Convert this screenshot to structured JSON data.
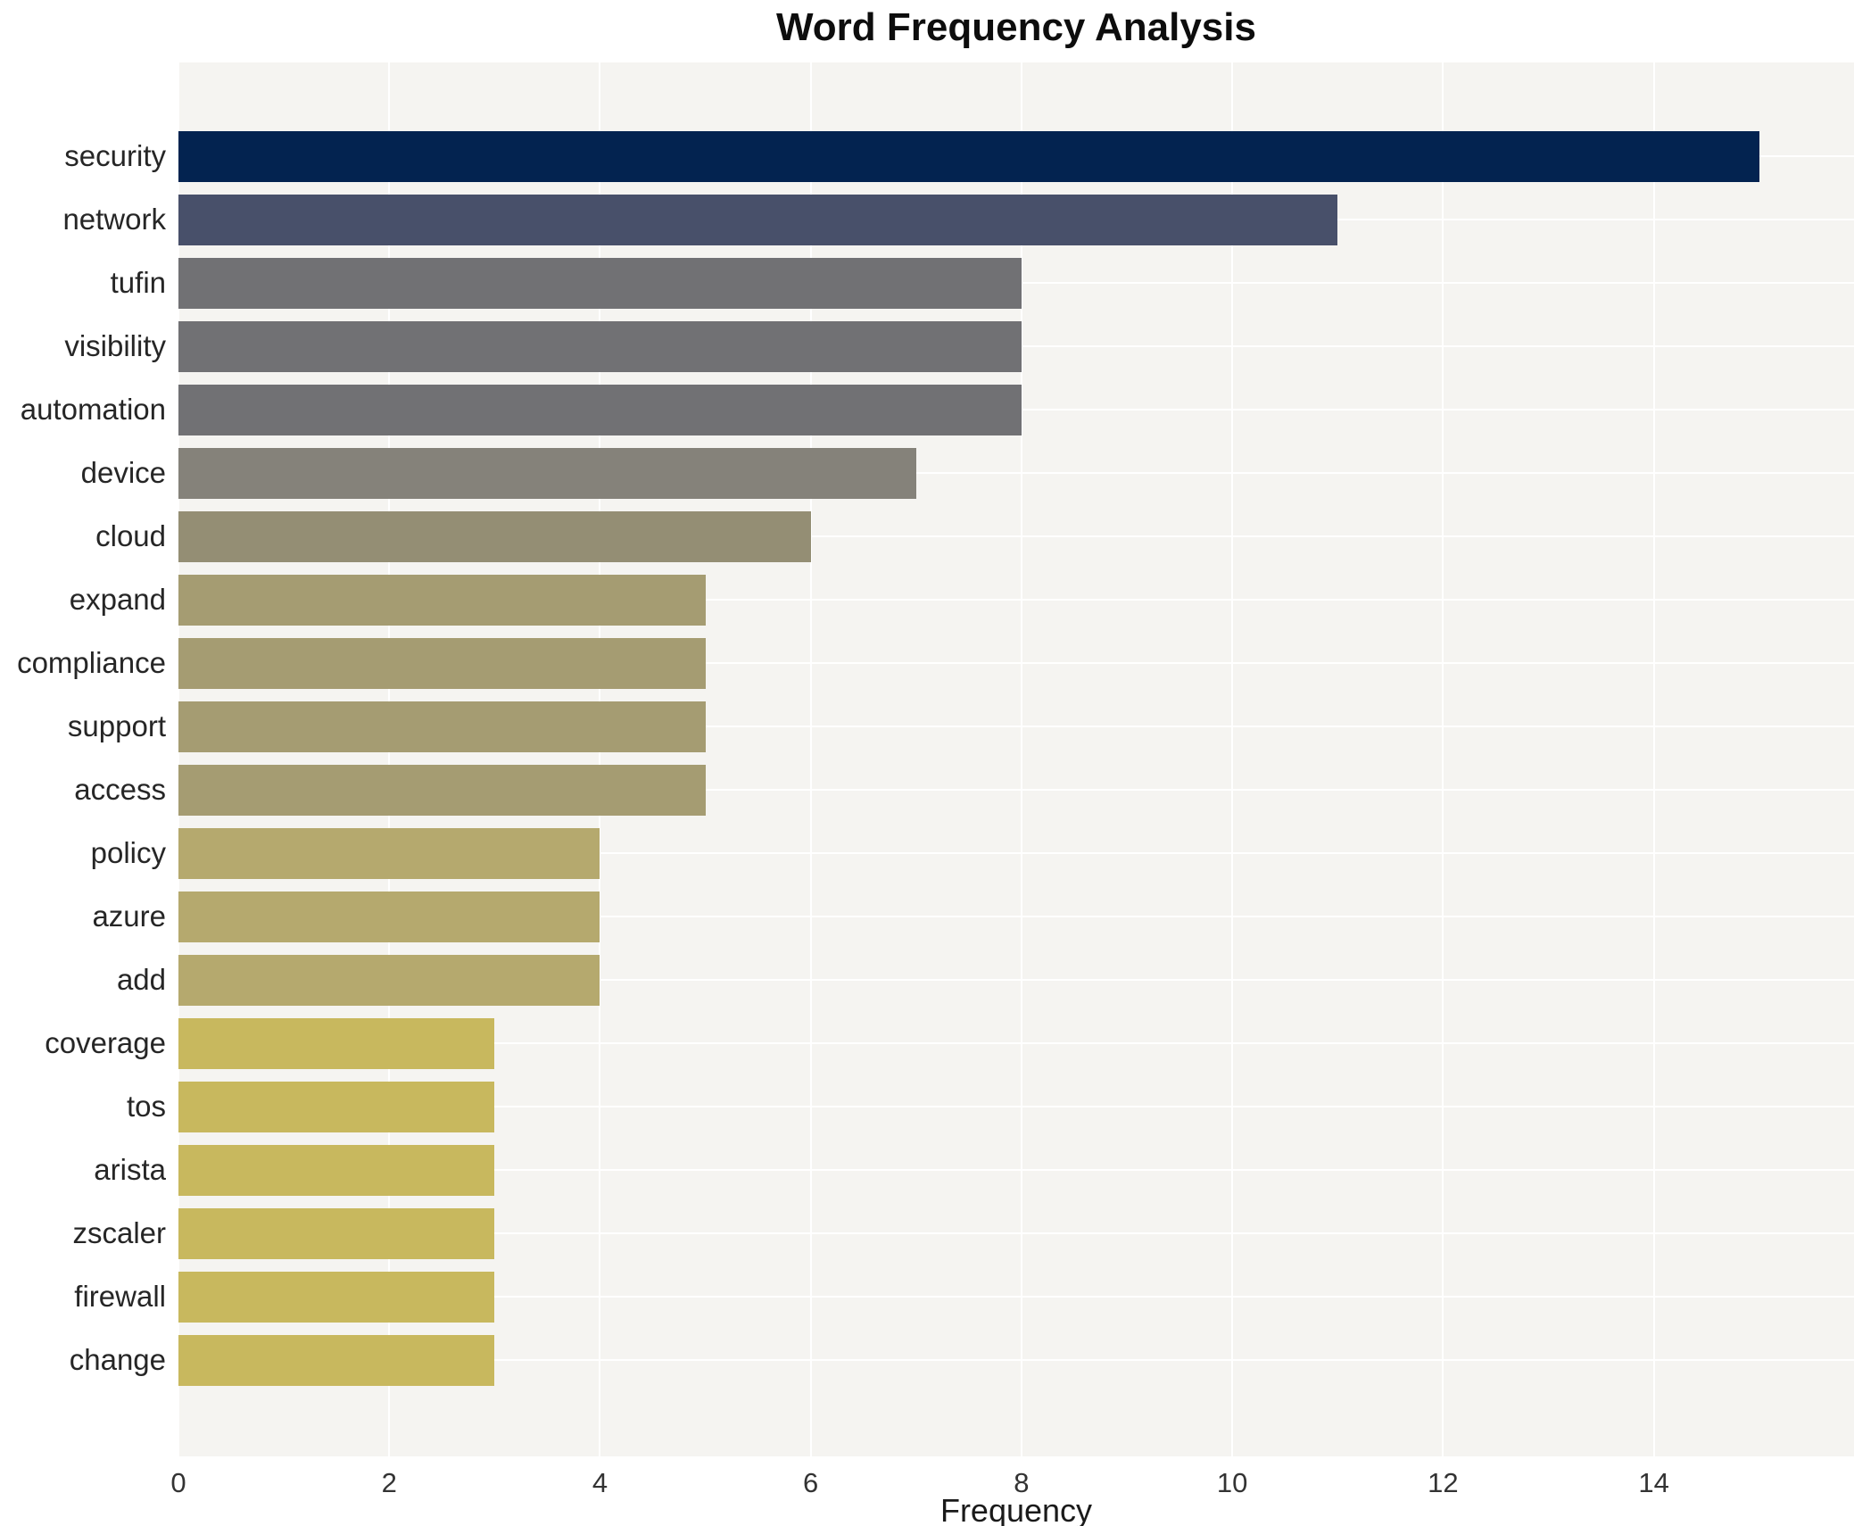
{
  "chart_data": {
    "type": "bar",
    "orientation": "horizontal",
    "title": "Word Frequency Analysis",
    "xlabel": "Frequency",
    "ylabel": "",
    "categories": [
      "security",
      "network",
      "tufin",
      "visibility",
      "automation",
      "device",
      "cloud",
      "expand",
      "compliance",
      "support",
      "access",
      "policy",
      "azure",
      "add",
      "coverage",
      "tos",
      "arista",
      "zscaler",
      "firewall",
      "change"
    ],
    "values": [
      15,
      11,
      8,
      8,
      8,
      7,
      6,
      5,
      5,
      5,
      5,
      4,
      4,
      4,
      3,
      3,
      3,
      3,
      3,
      3
    ],
    "bar_colors": [
      "#032350",
      "#48506a",
      "#717174",
      "#717174",
      "#717174",
      "#85827a",
      "#948e74",
      "#a59c72",
      "#a59c72",
      "#a59c72",
      "#a59c72",
      "#b5a96e",
      "#b5a96e",
      "#b5a96e",
      "#c8b85e",
      "#c8b85e",
      "#c8b85e",
      "#c8b85e",
      "#c8b85e",
      "#c8b85e"
    ],
    "xlim": [
      0,
      15.9
    ],
    "xticks": [
      0,
      2,
      4,
      6,
      8,
      10,
      12,
      14
    ],
    "grid": true,
    "legend": "none",
    "plot_bg_color": "#f5f4f1",
    "gridline_color": "#ffffff",
    "title_color": "#0d0d0d",
    "label_color": "#262626"
  }
}
